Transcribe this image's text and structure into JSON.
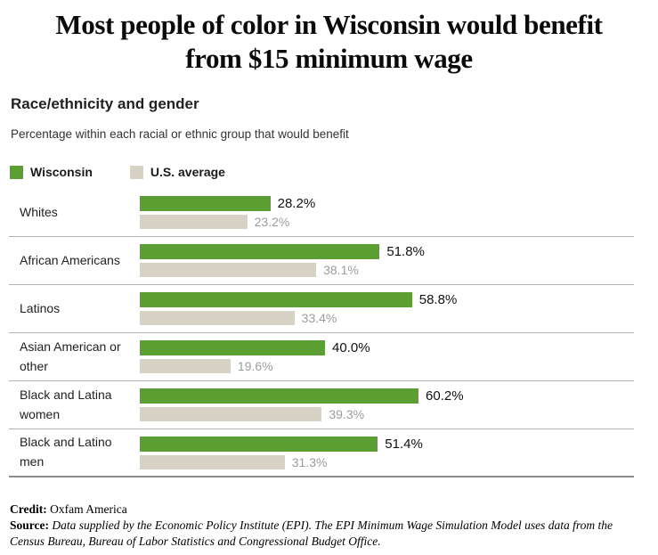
{
  "title": {
    "line1": "Most people of color in Wisconsin would benefit",
    "line2": "from $15 minimum wage"
  },
  "section": {
    "heading": "Race/ethnicity and gender",
    "description": "Percentage within each racial or ethnic group that would benefit"
  },
  "legend": {
    "items": [
      {
        "label": "Wisconsin",
        "color": "#5b9e32"
      },
      {
        "label": "U.S. average",
        "color": "#d6d2c5"
      }
    ]
  },
  "chart_data": {
    "type": "bar",
    "orientation": "horizontal",
    "title": "Most people of color in Wisconsin would benefit from $15 minimum wage",
    "subtitle": "Race/ethnicity and gender",
    "xlabel": "Percentage within each racial or ethnic group that would benefit",
    "categories": [
      "Whites",
      "African Americans",
      "Latinos",
      "Asian American or other",
      "Black and Latina women",
      "Black and Latino men"
    ],
    "series": [
      {
        "name": "Wisconsin",
        "color": "#5b9e32",
        "values": [
          28.2,
          51.8,
          58.8,
          40.0,
          60.2,
          51.4
        ]
      },
      {
        "name": "U.S. average",
        "color": "#d6d2c5",
        "values": [
          23.2,
          38.1,
          33.4,
          19.6,
          39.3,
          31.3
        ]
      }
    ],
    "value_suffix": "%",
    "value_decimals": 1,
    "xlim": [
      0,
      107
    ],
    "grid": false,
    "legend_position": "top-left"
  },
  "footer": {
    "credit_label": "Credit:",
    "credit_text": "Oxfam America",
    "source_label": "Source:",
    "source_text": "Data supplied by the Economic Policy Institute (EPI). The EPI Minimum Wage Simulation Model uses data from the Census Bureau, Bureau of Labor Statistics and Congressional Budget Office."
  }
}
